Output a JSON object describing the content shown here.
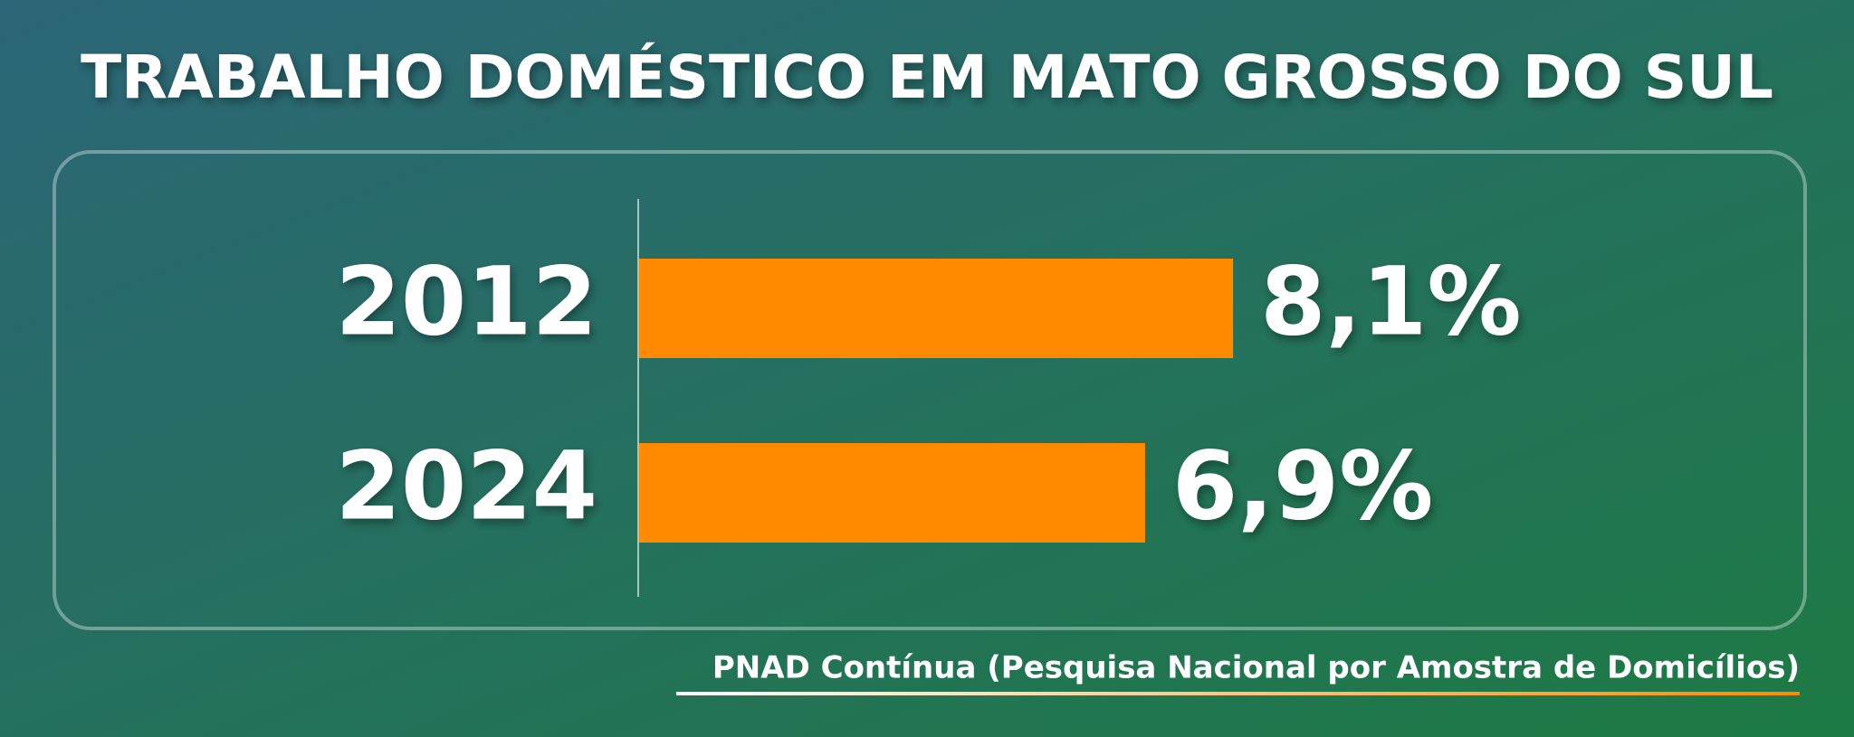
{
  "chart_data": {
    "type": "bar",
    "orientation": "horizontal",
    "title": "TRABALHO DOMÉSTICO EM MATO GROSSO DO SUL",
    "categories": [
      "2012",
      "2024"
    ],
    "values": [
      8.1,
      6.9
    ],
    "value_labels": [
      "8,1%",
      "6,9%"
    ],
    "color": "#ff8a00",
    "source": "PNAD Contínua (Pesquisa Nacional por Amostra de Domicílios)"
  }
}
